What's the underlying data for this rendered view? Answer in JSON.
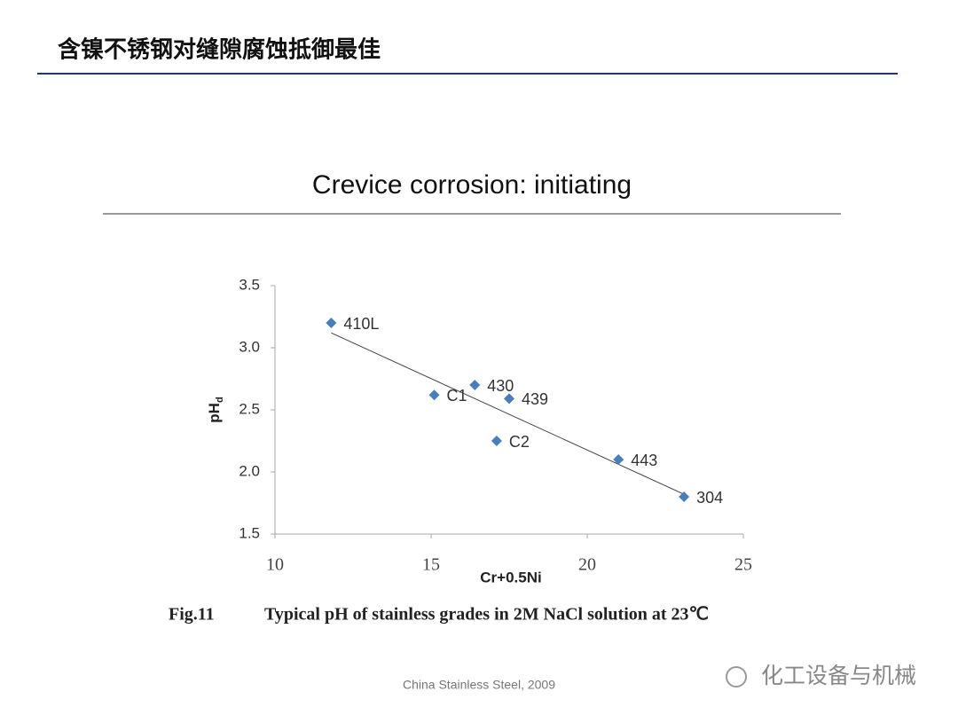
{
  "slide": {
    "title": "含镍不锈钢对缝隙腐蚀抵御最佳",
    "subtitle": "Crevice corrosion: initiating",
    "caption_number": "Fig.11",
    "caption": "Typical pH of stainless grades in 2M NaCl solution at 23℃",
    "footer": "China Stainless Steel, 2009",
    "watermark": "化工设备与机械"
  },
  "chart_data": {
    "type": "scatter",
    "xlabel": "Cr+0.5Ni",
    "ylabel": "pH",
    "ylabel_subscript": "d",
    "x": [
      11.8,
      15.1,
      16.4,
      17.5,
      17.1,
      21.0,
      23.1
    ],
    "y": [
      3.2,
      2.62,
      2.7,
      2.59,
      2.25,
      2.1,
      1.8
    ],
    "point_labels": [
      "410L",
      "C1",
      "430",
      "439",
      "C2",
      "443",
      "304"
    ],
    "color": "#4a7ebb",
    "trendline": {
      "x": [
        11.8,
        23.1
      ],
      "y": [
        3.12,
        1.82
      ]
    },
    "xlim": [
      10,
      25
    ],
    "xticks": [
      10,
      15,
      20,
      25
    ],
    "ylim": [
      1.5,
      3.5
    ],
    "yticks": [
      3.5,
      {
        "value": 3,
        "label": "3.0"
      },
      2.5,
      {
        "value": 2,
        "label": "2.0"
      },
      1.5
    ],
    "grid": false
  }
}
